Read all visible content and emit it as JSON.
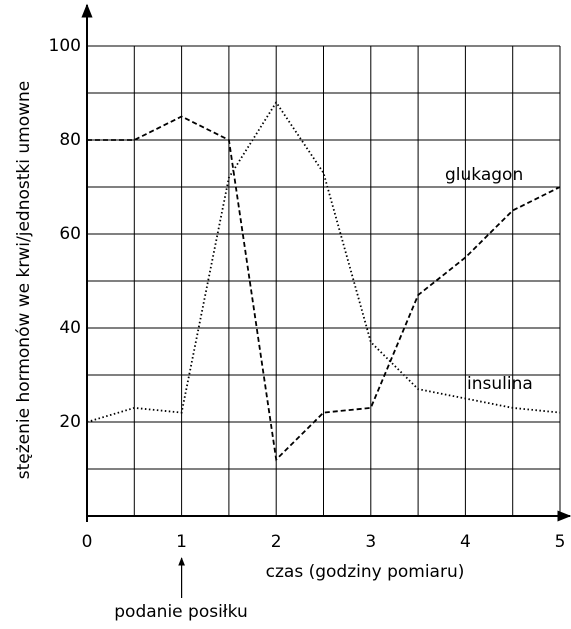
{
  "chart_data": {
    "type": "line",
    "x_label": "czas (godziny pomiaru)",
    "y_label": "stężenie hormonów we krwi/jednostki umowne",
    "annotation": "podanie posiłku",
    "x": [
      0,
      0.5,
      1,
      1.5,
      2,
      2.5,
      3,
      3.5,
      4,
      4.5,
      5
    ],
    "series": [
      {
        "name": "glukagon",
        "color": "#000000",
        "values": [
          80,
          80,
          85,
          80,
          12,
          22,
          23,
          47,
          55,
          65,
          70
        ]
      },
      {
        "name": "insulina",
        "color": "#000000",
        "values": [
          20,
          23,
          22,
          72,
          88,
          73,
          37,
          27,
          25,
          23,
          22
        ]
      }
    ],
    "xlim": [
      0,
      5
    ],
    "xticks": [
      0,
      1,
      2,
      3,
      4,
      5
    ],
    "xgrid_minor": [
      0.5,
      1.5,
      2.5,
      3.5,
      4.5
    ],
    "ylim": [
      0,
      100
    ],
    "yticks": [
      20,
      40,
      60,
      80,
      100
    ],
    "ygrid_minor": [
      10,
      30,
      50,
      70,
      90
    ],
    "grid": true
  }
}
